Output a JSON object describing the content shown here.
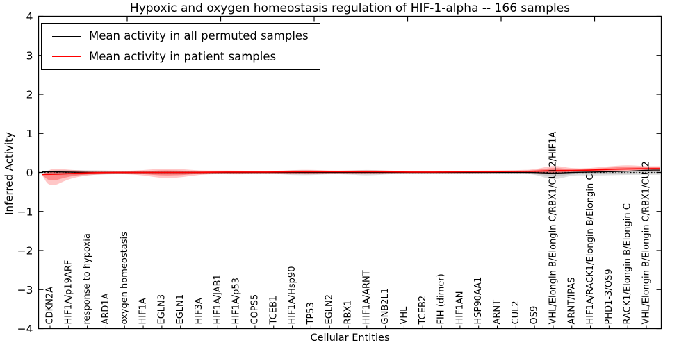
{
  "chart_data": {
    "type": "line",
    "title": "Hypoxic and oxygen homeostasis regulation of HIF-1-alpha -- 166 samples",
    "xlabel": "Cellular Entities",
    "ylabel": "Inferred Activity",
    "ylim": [
      -4,
      4
    ],
    "yticks": {
      "values": [
        4,
        3,
        2,
        1,
        0,
        -1,
        -2,
        -3,
        -4
      ],
      "labels": [
        "4",
        "3",
        "2",
        "1",
        "0",
        "−1",
        "−2",
        "−3",
        "−4"
      ]
    },
    "grid": false,
    "legend_position": "upper left",
    "zero_line": 0,
    "categories": [
      "CDKN2A",
      "HIF1A/p19ARF",
      "response to hypoxia",
      "ARD1A",
      "oxygen homeostasis",
      "HIF1A",
      "EGLN3",
      "EGLN1",
      "HIF3A",
      "HIF1A/JAB1",
      "HIF1A/p53",
      "COPS5",
      "TCEB1",
      "HIF1A/Hsp90",
      "TP53",
      "EGLN2",
      "RBX1",
      "HIF1A/ARNT",
      "GNB2L1",
      "VHL",
      "TCEB2",
      "FIH (dimer)",
      "HIF1AN",
      "HSP90AA1",
      "ARNT",
      "CUL2",
      "OS9",
      "VHL/Elongin B/Elongin C/RBX1/CUL2/HIF1A",
      "ARNT/IPAS",
      "HIF1A/RACK1/Elongin B/Elongin C",
      "PHD1-3/OS9",
      "RACK1/Elongin B/Elongin C",
      "VHL/Elongin B/Elongin C/RBX1/CUL2"
    ],
    "series": [
      {
        "name": "Mean activity in all permuted samples",
        "color": "#000000",
        "values": [
          0.02,
          0.01,
          0,
          0,
          0,
          0,
          0,
          0,
          0,
          0,
          0,
          0,
          0,
          0,
          0,
          0,
          0,
          0,
          0,
          0,
          0,
          0,
          0,
          0,
          0,
          0,
          0,
          -0.02,
          0,
          0.01,
          0.02,
          0.03,
          0.06
        ]
      },
      {
        "name": "Mean activity in patient samples",
        "color": "#ff0000",
        "values": [
          -0.05,
          -0.03,
          -0.01,
          0,
          0,
          0,
          0,
          0,
          0,
          0.01,
          0.01,
          0.01,
          0.01,
          0.02,
          0.02,
          0.02,
          0.02,
          0.02,
          0.02,
          0.01,
          0.01,
          0.01,
          0.02,
          0.02,
          0.02,
          0.03,
          0.03,
          0.05,
          0.05,
          0.06,
          0.08,
          0.09,
          0.1
        ]
      }
    ],
    "bands": [
      {
        "name": "permuted-samples-spread",
        "color": "#8c8c8c",
        "upper": [
          0.05,
          0.06,
          0.06,
          0.05,
          0.04,
          0.04,
          0.05,
          0.05,
          0.04,
          0.03,
          0.03,
          0.03,
          0.03,
          0.06,
          0.06,
          0.04,
          0.05,
          0.07,
          0.05,
          0.03,
          0.03,
          0.03,
          0.03,
          0.03,
          0.03,
          0.03,
          0.04,
          0.08,
          0.04,
          0.03,
          0.03,
          0.03,
          0.03
        ],
        "lower": [
          -0.06,
          -0.07,
          -0.07,
          -0.05,
          -0.04,
          -0.04,
          -0.05,
          -0.05,
          -0.04,
          -0.03,
          -0.03,
          -0.03,
          -0.03,
          -0.07,
          -0.07,
          -0.04,
          -0.05,
          -0.08,
          -0.05,
          -0.03,
          -0.03,
          -0.03,
          -0.03,
          -0.03,
          -0.03,
          -0.03,
          -0.04,
          -0.21,
          -0.07,
          -0.08,
          -0.07,
          -0.06,
          -0.06
        ]
      },
      {
        "name": "patient-samples-spread",
        "color": "#ff0000",
        "upper": [
          0.12,
          0.07,
          0.04,
          0.03,
          0.04,
          0.06,
          0.1,
          0.09,
          0.05,
          0.05,
          0.05,
          0.04,
          0.04,
          0.06,
          0.07,
          0.05,
          0.05,
          0.06,
          0.05,
          0.04,
          0.04,
          0.04,
          0.04,
          0.05,
          0.05,
          0.06,
          0.07,
          0.19,
          0.1,
          0.11,
          0.16,
          0.19,
          0.16
        ],
        "lower": [
          -0.4,
          -0.16,
          -0.07,
          -0.04,
          -0.04,
          -0.07,
          -0.15,
          -0.13,
          -0.06,
          -0.04,
          -0.05,
          -0.04,
          -0.03,
          -0.04,
          -0.05,
          -0.03,
          -0.03,
          -0.04,
          -0.02,
          -0.02,
          -0.02,
          -0.02,
          -0.02,
          -0.02,
          -0.01,
          -0.01,
          -0.01,
          -0.06,
          0,
          0.01,
          0.02,
          0.03,
          0.04
        ]
      }
    ]
  }
}
